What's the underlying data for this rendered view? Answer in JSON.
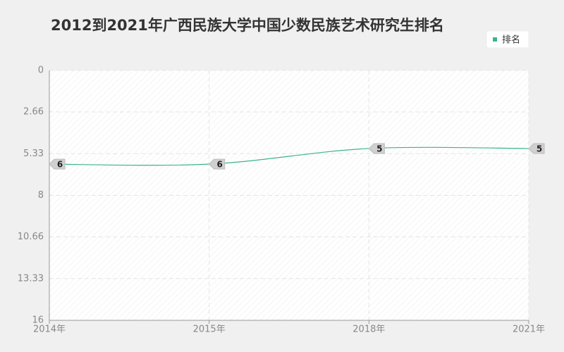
{
  "chart_data": {
    "type": "line",
    "title": "2012到2021年广西民族大学中国少数民族艺术研究生排名",
    "categories": [
      "2014年",
      "2015年",
      "2018年",
      "2021年"
    ],
    "series": [
      {
        "name": "排名",
        "color": "#3cb48a",
        "values": [
          6,
          6,
          5,
          5
        ]
      }
    ],
    "ylim": [
      16,
      0
    ],
    "yticks": [
      0,
      2.66,
      5.33,
      8,
      10.66,
      13.33,
      16
    ],
    "grid": true,
    "legend": "top-right"
  }
}
